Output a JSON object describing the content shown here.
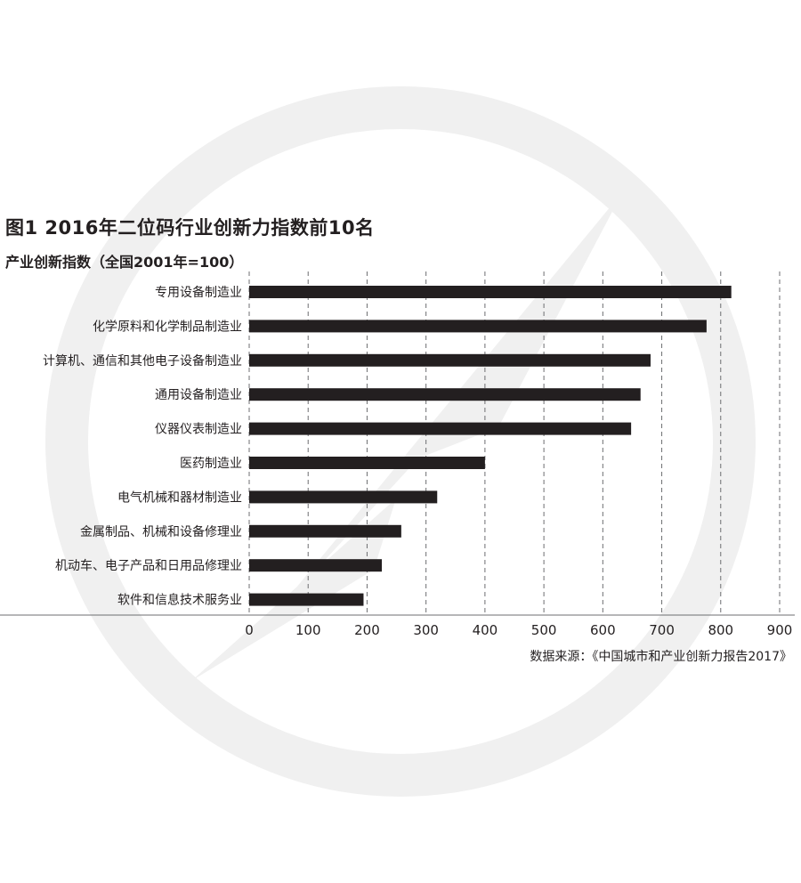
{
  "chart_data": {
    "type": "bar",
    "orientation": "horizontal",
    "title": "图1  2016年二位码行业创新力指数前10名",
    "subtitle": "产业创新指数（全国2001年=100）",
    "categories": [
      "专用设备制造业",
      "化学原料和化学制品制造业",
      "计算机、通信和其他电子设备制造业",
      "通用设备制造业",
      "仪器仪表制造业",
      "医药制造业",
      "电气机械和器材制造业",
      "金属制品、机械和设备修理业",
      "机动车、电子产品和日用品修理业",
      "软件和信息技术服务业"
    ],
    "values": [
      818,
      776,
      681,
      664,
      648,
      400,
      319,
      258,
      225,
      194
    ],
    "xlim": [
      0,
      900
    ],
    "ticks": [
      "0",
      "100",
      "200",
      "300",
      "400",
      "500",
      "600",
      "700",
      "800",
      "900"
    ],
    "grid": "vertical dashed",
    "source": "数据来源：《中国城市和产业创新力报告2017》",
    "colors": {
      "bar": "#231f20",
      "grid": "#6d6e71",
      "watermark": "#f0f0f0"
    }
  }
}
